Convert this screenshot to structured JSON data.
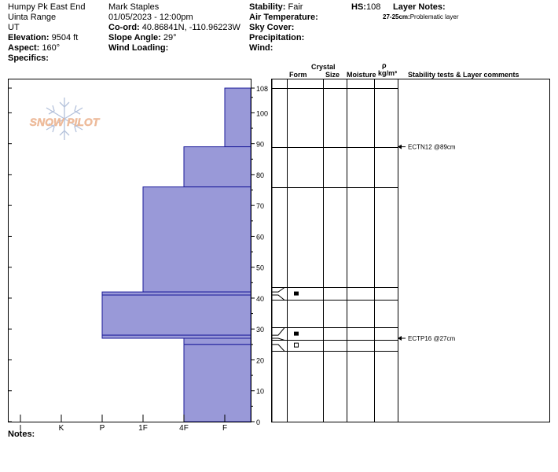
{
  "header": {
    "location": "Humpy Pk East End",
    "range": "Uinta Range",
    "state": "UT",
    "elevation_label": "Elevation:",
    "elevation_value": "9504 ft",
    "aspect_label": "Aspect:",
    "aspect_value": "160°",
    "specifics_label": "Specifics:",
    "observer": "Mark Staples",
    "datetime": "01/05/2023 - 12:00pm",
    "coord_label": "Co-ord:",
    "coord_value": "40.86841N, -110.96223W",
    "slope_label": "Slope Angle:",
    "slope_value": "29°",
    "wind_loading_label": "Wind Loading:",
    "stability_label": "Stability:",
    "stability_value": "Fair",
    "air_temp_label": "Air Temperature:",
    "sky_cover_label": "Sky Cover:",
    "precip_label": "Precipitation:",
    "wind_label": "Wind:",
    "hs_label": "HS:",
    "hs_value": "108",
    "layer_notes_label": "Layer Notes:",
    "layer_note_depth": "27-25cm:",
    "layer_note_text": "Problematic layer"
  },
  "logo_text": "SNOW PILOT",
  "notes_label": "Notes:",
  "table_headers": {
    "crystal": "Crystal",
    "form": "Form",
    "size": "Size",
    "moisture": "Moisture",
    "rho": "ρ",
    "density_unit": "kg/m³",
    "comments": "Stability tests & Layer comments"
  },
  "colors": {
    "hardness_fill": "#9999d8",
    "hardness_line": "#1a1a99",
    "frame": "#000000"
  },
  "chart_data": {
    "type": "bar",
    "title": "",
    "xlabel": "",
    "ylabel": "",
    "x_ticks": [
      "I",
      "K",
      "P",
      "1F",
      "4F",
      "F"
    ],
    "y_ticks": [
      0,
      10,
      20,
      30,
      40,
      50,
      60,
      70,
      80,
      90,
      100,
      108
    ],
    "ylim": [
      0,
      108
    ],
    "layers": [
      {
        "top": 108,
        "bottom": 89,
        "hardness": "F"
      },
      {
        "top": 89,
        "bottom": 76,
        "hardness": "4F"
      },
      {
        "top": 76,
        "bottom": 42,
        "hardness": "1F"
      },
      {
        "top": 42,
        "bottom": 41,
        "hardness": "P"
      },
      {
        "top": 41,
        "bottom": 28,
        "hardness": "P"
      },
      {
        "top": 28,
        "bottom": 27,
        "hardness": "P"
      },
      {
        "top": 27,
        "bottom": 25,
        "hardness": "4F"
      },
      {
        "top": 25,
        "bottom": 0,
        "hardness": "4F"
      }
    ],
    "table_lines": [
      108,
      89,
      76,
      43.5,
      39.5,
      30.5,
      26.5,
      23
    ],
    "connectors": [
      {
        "depth": 42,
        "row": 43.5
      },
      {
        "depth": 41,
        "row": 39.5
      },
      {
        "depth": 28,
        "row": 30.5
      },
      {
        "depth": 27,
        "row": 26.5
      },
      {
        "depth": 25,
        "row": 23
      }
    ],
    "grain_symbols": [
      {
        "depth": 41.5,
        "symbol": "filled-square"
      },
      {
        "depth": 28.5,
        "symbol": "filled-square"
      },
      {
        "depth": 24.8,
        "symbol": "open-square"
      }
    ],
    "stability_tests": [
      {
        "depth": 89,
        "label": "ECTN12 @89cm"
      },
      {
        "depth": 27,
        "label": "ECTP16 @27cm"
      }
    ]
  }
}
